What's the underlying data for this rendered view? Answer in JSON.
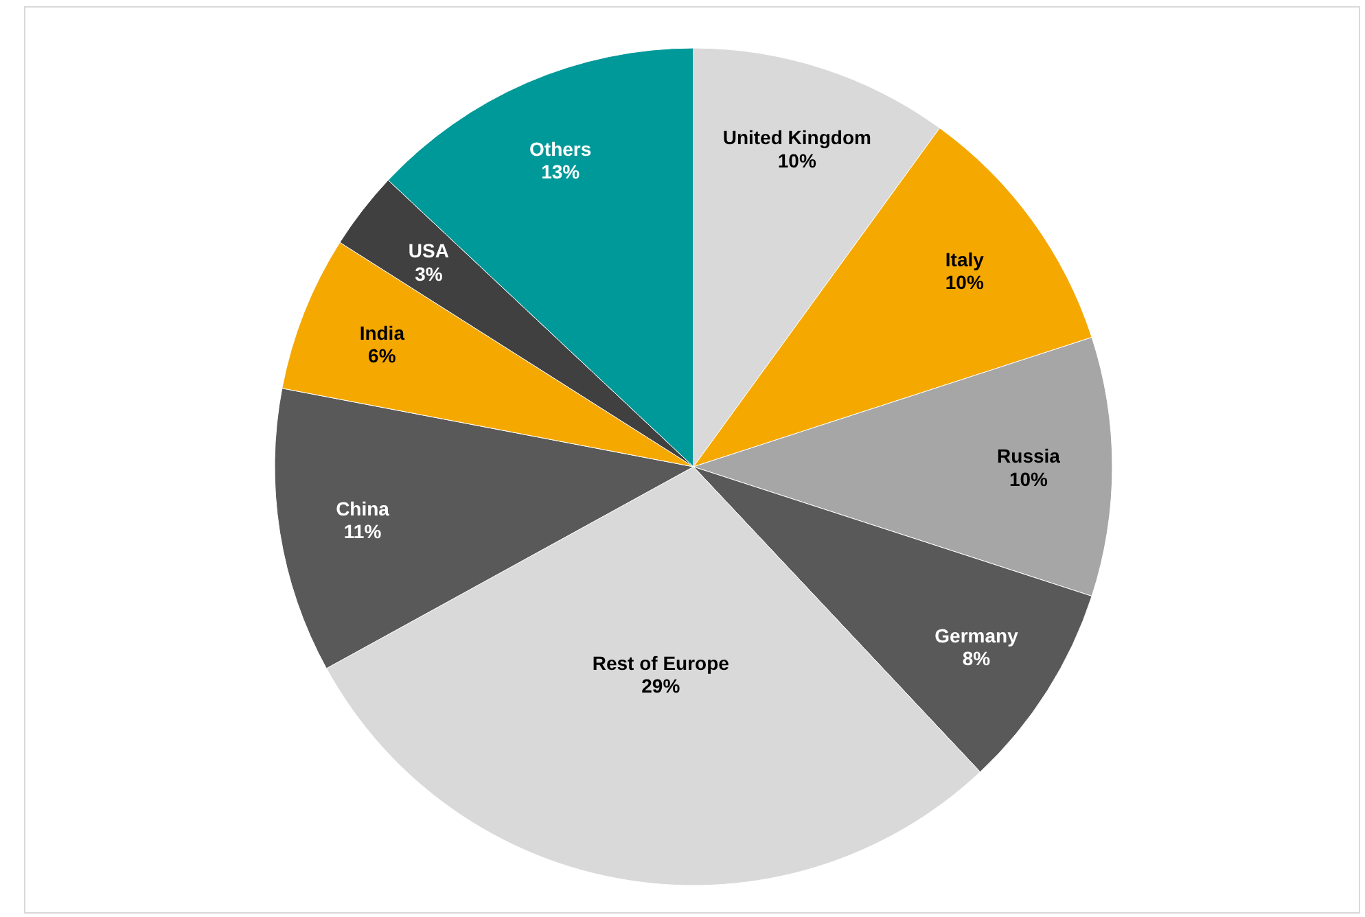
{
  "chart_data": {
    "type": "pie",
    "categories": [
      "United Kingdom",
      "Italy",
      "Russia",
      "Germany",
      "Rest of Europe",
      "China",
      "India",
      "USA",
      "Others"
    ],
    "values": [
      10,
      10,
      10,
      8,
      29,
      11,
      6,
      3,
      13
    ],
    "colors": [
      "#d9d9d9",
      "#f5a800",
      "#a6a6a6",
      "#595959",
      "#d9d9d9",
      "#595959",
      "#f5a800",
      "#404040",
      "#009999"
    ],
    "value_labels": [
      "10%",
      "10%",
      "10%",
      "8%",
      "29%",
      "11%",
      "6%",
      "3%",
      "13%"
    ],
    "legend": false
  }
}
